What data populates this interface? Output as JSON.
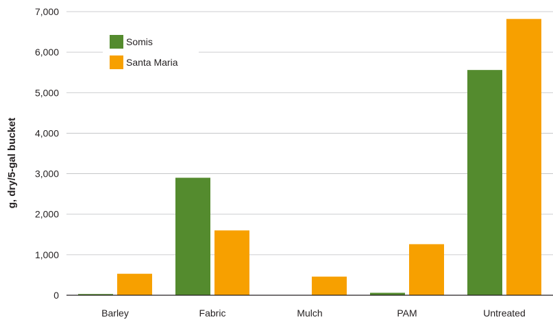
{
  "chart_data": {
    "type": "bar",
    "categories": [
      "Barley",
      "Fabric",
      "Mulch",
      "PAM",
      "Untreated"
    ],
    "series": [
      {
        "name": "Somis",
        "values": [
          30,
          2900,
          0,
          60,
          5560
        ],
        "color": "#548b2e"
      },
      {
        "name": "Santa Maria",
        "values": [
          530,
          1600,
          460,
          1260,
          6820
        ],
        "color": "#f7a000"
      }
    ],
    "xlabel": "",
    "ylabel": "g, dry/5-gal bucket",
    "ylim": [
      0,
      7000
    ],
    "yticks": [
      0,
      1000,
      2000,
      3000,
      4000,
      5000,
      6000,
      7000
    ],
    "ytick_labels": [
      "0",
      "1,000",
      "2,000",
      "3,000",
      "4,000",
      "5,000",
      "6,000",
      "7,000"
    ],
    "grid": "horizontal",
    "legend_position": "top-left"
  }
}
